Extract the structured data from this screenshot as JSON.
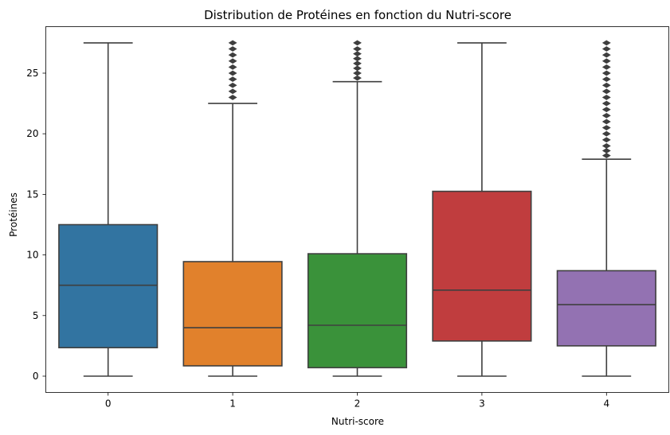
{
  "chart_data": {
    "type": "boxplot",
    "title": "Distribution de Protéines en fonction du Nutri-score",
    "xlabel": "Nutri-score",
    "ylabel": "Protéines",
    "ylim": [
      -1.5,
      28.2
    ],
    "yticks": [
      "0",
      "5",
      "10",
      "15",
      "20",
      "25"
    ],
    "grid": false,
    "legend": "none",
    "categories": [
      "0",
      "1",
      "2",
      "3",
      "4"
    ],
    "colors": [
      "#3274a1",
      "#e1812c",
      "#3a923a",
      "#c03d3e",
      "#9372b2"
    ],
    "boxes": [
      {
        "category": "0",
        "whisker_low": 0.0,
        "q1": 2.35,
        "median": 7.5,
        "q3": 12.5,
        "whisker_high": 27.5,
        "outliers": []
      },
      {
        "category": "1",
        "whisker_low": 0.0,
        "q1": 0.85,
        "median": 4.0,
        "q3": 9.45,
        "whisker_high": 22.5,
        "outliers": [
          23.0,
          23.5,
          24.0,
          24.5,
          25.0,
          25.5,
          26.0,
          26.5,
          27.0,
          27.5
        ]
      },
      {
        "category": "2",
        "whisker_low": 0.0,
        "q1": 0.7,
        "median": 4.2,
        "q3": 10.1,
        "whisker_high": 24.3,
        "outliers": [
          24.6,
          25.0,
          25.4,
          25.8,
          26.2,
          26.6,
          27.0,
          27.5
        ]
      },
      {
        "category": "3",
        "whisker_low": 0.0,
        "q1": 2.9,
        "median": 7.1,
        "q3": 15.25,
        "whisker_high": 27.5,
        "outliers": []
      },
      {
        "category": "4",
        "whisker_low": 0.0,
        "q1": 2.5,
        "median": 5.9,
        "q3": 8.7,
        "whisker_high": 17.9,
        "outliers": [
          18.2,
          18.6,
          19.0,
          19.5,
          20.0,
          20.5,
          21.0,
          21.5,
          22.0,
          22.5,
          23.0,
          23.5,
          24.0,
          24.5,
          25.0,
          25.5,
          26.0,
          26.5,
          27.0,
          27.5
        ]
      }
    ]
  }
}
